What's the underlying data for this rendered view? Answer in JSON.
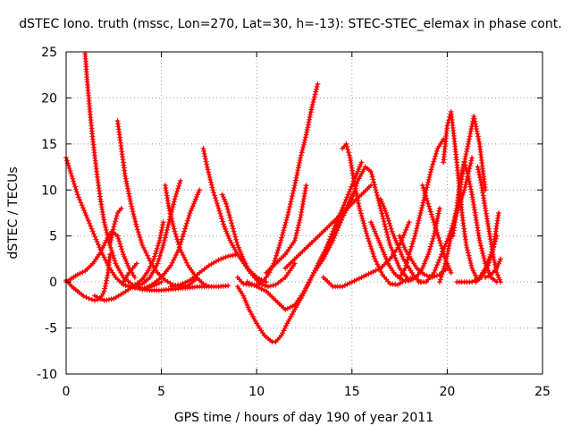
{
  "chart_data": {
    "type": "scatter",
    "title": "dSTEC Iono. truth (mssc, Lon=270, Lat=30, h=-13): STEC-STEC_elemax in phase cont.",
    "xlabel": "GPS time / hours of day 190 of year 2011",
    "ylabel": "dSTEC  / TECUs",
    "xlim": [
      0,
      25
    ],
    "ylim": [
      -10,
      25
    ],
    "xticks": [
      0,
      5,
      10,
      15,
      20,
      25
    ],
    "yticks": [
      -10,
      -5,
      0,
      5,
      10,
      15,
      20,
      25
    ],
    "grid": true,
    "marker": "+",
    "series": [
      {
        "color": "#ff0000",
        "x": [
          0.0,
          0.3,
          0.6,
          1.0,
          1.4,
          1.8,
          2.2,
          2.6,
          3.0,
          3.4,
          3.6
        ],
        "y": [
          13.5,
          11.5,
          9.5,
          7.5,
          5.5,
          3.5,
          1.8,
          0.5,
          -0.3,
          -0.5,
          -0.6
        ]
      },
      {
        "color": "#ff0000",
        "x": [
          0.0,
          0.3,
          0.6,
          0.9,
          1.2,
          1.5,
          1.8,
          2.0,
          2.2,
          2.3
        ],
        "y": [
          0.2,
          -0.5,
          -1.0,
          -1.5,
          -1.8,
          -2.0,
          -1.8,
          -1.0,
          1.0,
          3.0
        ]
      },
      {
        "color": "#ff0000",
        "x": [
          0.0,
          0.3,
          0.6,
          1.0,
          1.4,
          1.8,
          2.1,
          2.4,
          2.7,
          3.0,
          3.3,
          3.6
        ],
        "y": [
          0.0,
          0.4,
          0.8,
          1.2,
          2.0,
          3.2,
          4.5,
          5.5,
          5.0,
          3.0,
          1.5,
          0.5
        ]
      },
      {
        "color": "#ff0000",
        "x": [
          1.0,
          1.1,
          1.25,
          1.4,
          1.6,
          1.8,
          2.0,
          2.3,
          2.6,
          3.0,
          3.5,
          4.0,
          4.5,
          5.0
        ],
        "y": [
          24.8,
          22.0,
          18.5,
          15.5,
          12.0,
          9.0,
          6.5,
          4.0,
          2.0,
          0.5,
          -0.3,
          -0.7,
          -0.5,
          0.0
        ]
      },
      {
        "color": "#ff0000",
        "x": [
          2.7,
          2.9,
          3.1,
          3.4,
          3.7,
          4.0,
          4.4,
          4.8,
          5.2,
          5.6,
          6.0,
          6.4,
          6.8
        ],
        "y": [
          17.5,
          14.5,
          11.5,
          8.5,
          6.0,
          4.0,
          2.3,
          1.0,
          0.2,
          -0.3,
          -0.5,
          -0.4,
          0.3
        ]
      },
      {
        "color": "#ff0000",
        "x": [
          1.5,
          2.0,
          2.5,
          3.0,
          3.5,
          4.0,
          4.3,
          4.6,
          4.9,
          5.1
        ],
        "y": [
          -1.5,
          -2.0,
          -1.8,
          -1.2,
          -0.5,
          0.3,
          1.2,
          2.5,
          4.5,
          6.5
        ]
      },
      {
        "color": "#ff0000",
        "x": [
          2.3,
          2.5,
          2.7,
          2.9
        ],
        "y": [
          4.0,
          6.0,
          7.5,
          8.0
        ]
      },
      {
        "color": "#ff0000",
        "x": [
          3.0,
          3.3,
          3.7
        ],
        "y": [
          0.0,
          1.0,
          2.0
        ]
      },
      {
        "color": "#ff0000",
        "x": [
          3.0,
          3.5,
          4.0,
          4.5,
          5.0,
          5.5,
          6.0,
          6.5,
          7.0,
          7.5,
          8.0,
          8.5
        ],
        "y": [
          -0.3,
          -0.6,
          -0.8,
          -0.9,
          -0.9,
          -0.8,
          -0.7,
          -0.6,
          -0.5,
          -0.5,
          -0.5,
          -0.4
        ]
      },
      {
        "color": "#ff0000",
        "x": [
          3.5,
          4.0,
          4.4,
          4.8,
          5.1,
          5.4,
          5.7,
          6.0
        ],
        "y": [
          -0.5,
          -0.2,
          0.5,
          2.0,
          4.0,
          6.5,
          9.0,
          11.0
        ]
      },
      {
        "color": "#ff0000",
        "x": [
          4.0,
          4.5,
          5.0,
          5.5,
          5.9,
          6.2,
          6.5,
          6.8,
          7.0
        ],
        "y": [
          -0.8,
          -0.3,
          0.5,
          1.8,
          3.5,
          5.5,
          7.5,
          9.0,
          10.0
        ]
      },
      {
        "color": "#ff0000",
        "x": [
          5.2,
          5.4,
          5.7,
          6.0,
          6.4,
          6.8,
          7.2,
          7.5
        ],
        "y": [
          10.5,
          8.0,
          5.5,
          3.5,
          1.8,
          0.6,
          -0.2,
          -0.5
        ]
      },
      {
        "color": "#ff0000",
        "x": [
          5.5,
          6.0,
          6.5,
          7.0,
          7.5,
          8.0,
          8.5,
          9.0
        ],
        "y": [
          -0.5,
          -0.3,
          0.2,
          1.0,
          1.8,
          2.4,
          2.8,
          3.0
        ]
      },
      {
        "color": "#ff0000",
        "x": [
          7.2,
          7.4,
          7.7,
          8.0,
          8.3,
          8.6,
          9.0,
          9.5,
          10.0,
          10.5
        ],
        "y": [
          14.5,
          12.5,
          10.0,
          8.0,
          6.0,
          4.5,
          3.0,
          1.5,
          0.5,
          0.0
        ]
      },
      {
        "color": "#ff0000",
        "x": [
          8.2,
          8.4,
          8.6,
          8.8,
          9.0,
          9.3,
          9.6,
          10.0,
          10.3,
          10.6,
          11.0,
          11.5,
          12.0
        ],
        "y": [
          9.5,
          8.5,
          7.0,
          5.5,
          4.0,
          2.5,
          1.2,
          0.2,
          -0.3,
          -0.5,
          -0.3,
          0.5,
          2.0
        ]
      },
      {
        "color": "#ff0000",
        "x": [
          9.0,
          9.3,
          9.6,
          10.0,
          10.3,
          10.6,
          10.9,
          11.2,
          11.6,
          12.0,
          12.3,
          12.6,
          12.9,
          13.2
        ],
        "y": [
          0.5,
          -0.2,
          -0.3,
          -0.3,
          0.0,
          0.8,
          2.0,
          4.0,
          7.0,
          10.5,
          13.5,
          16.0,
          19.0,
          21.5
        ]
      },
      {
        "color": "#ff0000",
        "x": [
          9.0,
          9.3,
          9.6,
          10.0,
          10.4,
          10.8,
          11.0,
          11.3,
          11.6,
          12.0,
          12.4,
          12.8,
          13.2,
          13.6,
          14.0,
          14.4,
          14.8,
          15.2,
          15.5
        ],
        "y": [
          -0.5,
          -1.5,
          -3.0,
          -4.5,
          -5.8,
          -6.5,
          -6.5,
          -5.8,
          -4.5,
          -3.0,
          -1.5,
          0.2,
          1.8,
          3.5,
          5.5,
          7.5,
          9.5,
          11.5,
          13.0
        ]
      },
      {
        "color": "#ff0000",
        "x": [
          9.5,
          10.0,
          10.5,
          11.0,
          11.5,
          12.0,
          12.5,
          13.0,
          13.5,
          14.0,
          14.5,
          15.0
        ],
        "y": [
          0.0,
          -0.5,
          -1.0,
          -2.0,
          -3.0,
          -2.5,
          -1.0,
          1.0,
          3.0,
          5.0,
          7.0,
          9.5
        ]
      },
      {
        "color": "#ff0000",
        "x": [
          10.5,
          11.0,
          11.5,
          12.0,
          12.3,
          12.6
        ],
        "y": [
          1.0,
          2.0,
          3.0,
          4.5,
          7.0,
          10.5
        ]
      },
      {
        "color": "#ff0000",
        "x": [
          11.5,
          12.0,
          12.5,
          13.0,
          13.5,
          14.0,
          14.5,
          15.0,
          15.5,
          16.0
        ],
        "y": [
          1.5,
          2.5,
          3.5,
          4.5,
          5.5,
          6.5,
          7.5,
          8.5,
          9.5,
          10.5
        ]
      },
      {
        "color": "#ff0000",
        "x": [
          13.0,
          13.5,
          14.0,
          14.5,
          15.0,
          15.3,
          15.7,
          16.0,
          16.5,
          17.0,
          17.5,
          18.0
        ],
        "y": [
          1.0,
          2.5,
          4.5,
          7.0,
          9.0,
          11.0,
          12.5,
          12.0,
          8.0,
          4.0,
          1.5,
          0.2
        ]
      },
      {
        "color": "#ff0000",
        "x": [
          14.5,
          14.7,
          14.9,
          15.1,
          15.4,
          15.8,
          16.2,
          16.6,
          17.0,
          17.4,
          17.8,
          18.2
        ],
        "y": [
          14.5,
          15.0,
          13.5,
          11.0,
          8.0,
          5.0,
          2.5,
          0.8,
          -0.2,
          -0.3,
          0.2,
          0.5
        ]
      },
      {
        "color": "#ff0000",
        "x": [
          13.5,
          14.0,
          14.5,
          15.0,
          15.5,
          16.0,
          16.5,
          17.0,
          17.5,
          18.0
        ],
        "y": [
          0.5,
          -0.5,
          -0.5,
          0.0,
          0.5,
          1.0,
          1.5,
          2.5,
          4.0,
          6.5
        ]
      },
      {
        "color": "#ff0000",
        "x": [
          16.0,
          16.3,
          16.6,
          16.9,
          17.2,
          17.5,
          17.8,
          18.1,
          18.4,
          18.7,
          19.0,
          19.3,
          19.6
        ],
        "y": [
          6.5,
          5.0,
          3.5,
          2.0,
          1.0,
          0.4,
          0.1,
          0.2,
          0.6,
          1.5,
          3.0,
          5.0,
          8.0
        ]
      },
      {
        "color": "#ff0000",
        "x": [
          16.5,
          16.8,
          17.1,
          17.4,
          17.7,
          18.0,
          18.3,
          18.6
        ],
        "y": [
          9.0,
          7.5,
          5.5,
          4.0,
          2.5,
          1.5,
          0.5,
          0.0
        ]
      },
      {
        "color": "#ff0000",
        "x": [
          17.5,
          17.8,
          18.1,
          18.4,
          18.8,
          19.2,
          19.6,
          20.0
        ],
        "y": [
          5.0,
          3.5,
          2.5,
          1.5,
          0.8,
          0.5,
          0.8,
          1.5
        ]
      },
      {
        "color": "#ff0000",
        "x": [
          17.5,
          17.8,
          18.0,
          18.3,
          18.6,
          18.9,
          19.2,
          19.5,
          19.8
        ],
        "y": [
          0.5,
          1.5,
          3.0,
          5.0,
          7.5,
          10.0,
          12.5,
          14.5,
          15.5
        ]
      },
      {
        "color": "#ff0000",
        "x": [
          18.7,
          19.0,
          19.3,
          19.6,
          19.9,
          20.2
        ],
        "y": [
          10.5,
          8.5,
          6.5,
          4.5,
          2.5,
          1.0
        ]
      },
      {
        "color": "#ff0000",
        "x": [
          18.5,
          18.9,
          19.3,
          19.7,
          20.1,
          20.5,
          20.9,
          21.3
        ],
        "y": [
          0.0,
          0.0,
          1.0,
          3.0,
          5.0,
          7.5,
          10.0,
          13.5
        ]
      },
      {
        "color": "#ff0000",
        "x": [
          19.6,
          19.9,
          20.2,
          20.5,
          20.8,
          21.1,
          21.4,
          21.7,
          22.0
        ],
        "y": [
          0.0,
          2.0,
          5.0,
          8.0,
          12.0,
          15.0,
          18.0,
          15.0,
          10.0
        ]
      },
      {
        "color": "#ff0000",
        "x": [
          19.8,
          20.0,
          20.2,
          20.4,
          20.6,
          20.8,
          21.0,
          21.3,
          21.6
        ],
        "y": [
          13.0,
          17.0,
          18.5,
          15.0,
          11.0,
          7.0,
          4.0,
          1.5,
          0.2
        ]
      },
      {
        "color": "#ff0000",
        "x": [
          20.3,
          20.5,
          20.7,
          20.9,
          21.1,
          21.3,
          21.5,
          21.7,
          22.0,
          22.3,
          22.6
        ],
        "y": [
          5.0,
          8.0,
          11.0,
          13.0,
          11.5,
          9.5,
          7.0,
          4.5,
          2.0,
          0.5,
          0.0
        ]
      },
      {
        "color": "#ff0000",
        "x": [
          20.5,
          20.9,
          21.3,
          21.7,
          22.0,
          22.3,
          22.6
        ],
        "y": [
          0.0,
          0.0,
          0.0,
          0.5,
          1.5,
          3.0,
          5.0
        ]
      },
      {
        "color": "#ff0000",
        "x": [
          21.6,
          21.8,
          22.0,
          22.2,
          22.4,
          22.6,
          22.8
        ],
        "y": [
          12.5,
          10.5,
          8.0,
          5.5,
          3.0,
          1.0,
          0.0
        ]
      },
      {
        "color": "#ff0000",
        "x": [
          21.5,
          21.8,
          22.1,
          22.4,
          22.7
        ],
        "y": [
          0.0,
          0.5,
          1.5,
          3.5,
          7.5
        ]
      },
      {
        "color": "#ff0000",
        "x": [
          22.0,
          22.3,
          22.6,
          22.8
        ],
        "y": [
          0.5,
          0.8,
          1.5,
          2.5
        ]
      }
    ]
  }
}
